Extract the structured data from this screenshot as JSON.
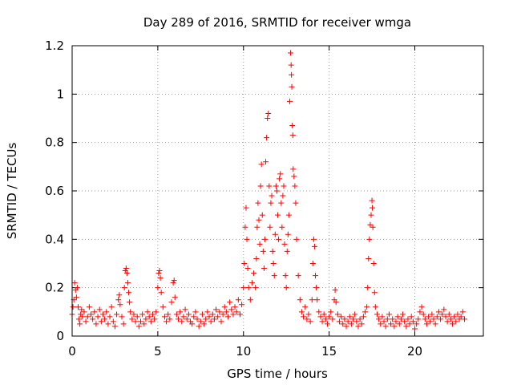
{
  "chart_data": {
    "type": "scatter",
    "title": "Day 289 of 2016, SRMTID for receiver wmga",
    "xlabel": "GPS time / hours",
    "ylabel": "SRMTID / TECUs",
    "xlim": [
      0,
      24
    ],
    "ylim": [
      0,
      1.2
    ],
    "x_ticks": [
      0,
      5,
      10,
      15,
      20
    ],
    "x_tick_labels": [
      "0",
      "5",
      "10",
      "15",
      "20"
    ],
    "y_ticks": [
      0,
      0.2,
      0.4,
      0.6,
      0.8,
      1,
      1.2
    ],
    "y_tick_labels": [
      "0",
      "0.2",
      "0.4",
      "0.6",
      "0.8",
      "1",
      "1.2"
    ],
    "grid": true,
    "marker": "plus",
    "color": "#ff0000",
    "series": [
      {
        "name": "SRMTID",
        "points": [
          [
            0.0,
            0.09
          ],
          [
            0.05,
            0.12
          ],
          [
            0.1,
            0.15
          ],
          [
            0.15,
            0.22
          ],
          [
            0.2,
            0.19
          ],
          [
            0.25,
            0.16
          ],
          [
            0.3,
            0.2
          ],
          [
            0.35,
            0.12
          ],
          [
            0.4,
            0.07
          ],
          [
            0.45,
            0.05
          ],
          [
            0.5,
            0.09
          ],
          [
            0.55,
            0.11
          ],
          [
            0.6,
            0.08
          ],
          [
            0.7,
            0.1
          ],
          [
            0.8,
            0.06
          ],
          [
            0.9,
            0.08
          ],
          [
            1.0,
            0.12
          ],
          [
            1.1,
            0.09
          ],
          [
            1.2,
            0.07
          ],
          [
            1.3,
            0.1
          ],
          [
            1.4,
            0.05
          ],
          [
            1.5,
            0.08
          ],
          [
            1.6,
            0.11
          ],
          [
            1.7,
            0.06
          ],
          [
            1.8,
            0.09
          ],
          [
            1.9,
            0.07
          ],
          [
            2.0,
            0.1
          ],
          [
            2.1,
            0.05
          ],
          [
            2.2,
            0.08
          ],
          [
            2.3,
            0.12
          ],
          [
            2.4,
            0.06
          ],
          [
            2.5,
            0.04
          ],
          [
            2.6,
            0.09
          ],
          [
            2.7,
            0.15
          ],
          [
            2.75,
            0.17
          ],
          [
            2.8,
            0.13
          ],
          [
            2.9,
            0.08
          ],
          [
            3.0,
            0.05
          ],
          [
            3.05,
            0.2
          ],
          [
            3.1,
            0.27
          ],
          [
            3.15,
            0.28
          ],
          [
            3.2,
            0.26
          ],
          [
            3.25,
            0.22
          ],
          [
            3.3,
            0.18
          ],
          [
            3.35,
            0.14
          ],
          [
            3.4,
            0.1
          ],
          [
            3.5,
            0.07
          ],
          [
            3.6,
            0.09
          ],
          [
            3.7,
            0.06
          ],
          [
            3.8,
            0.08
          ],
          [
            3.9,
            0.04
          ],
          [
            4.0,
            0.06
          ],
          [
            4.1,
            0.09
          ],
          [
            4.2,
            0.05
          ],
          [
            4.3,
            0.07
          ],
          [
            4.4,
            0.1
          ],
          [
            4.5,
            0.08
          ],
          [
            4.6,
            0.06
          ],
          [
            4.7,
            0.09
          ],
          [
            4.8,
            0.07
          ],
          [
            4.9,
            0.1
          ],
          [
            5.0,
            0.2
          ],
          [
            5.05,
            0.26
          ],
          [
            5.1,
            0.27
          ],
          [
            5.15,
            0.24
          ],
          [
            5.2,
            0.18
          ],
          [
            5.3,
            0.12
          ],
          [
            5.4,
            0.08
          ],
          [
            5.5,
            0.06
          ],
          [
            5.6,
            0.09
          ],
          [
            5.7,
            0.07
          ],
          [
            5.8,
            0.14
          ],
          [
            5.9,
            0.22
          ],
          [
            5.95,
            0.23
          ],
          [
            6.0,
            0.16
          ],
          [
            6.1,
            0.09
          ],
          [
            6.2,
            0.07
          ],
          [
            6.3,
            0.1
          ],
          [
            6.4,
            0.06
          ],
          [
            6.5,
            0.08
          ],
          [
            6.6,
            0.11
          ],
          [
            6.7,
            0.07
          ],
          [
            6.8,
            0.09
          ],
          [
            6.9,
            0.06
          ],
          [
            7.0,
            0.05
          ],
          [
            7.1,
            0.08
          ],
          [
            7.2,
            0.1
          ],
          [
            7.3,
            0.07
          ],
          [
            7.4,
            0.04
          ],
          [
            7.5,
            0.06
          ],
          [
            7.6,
            0.09
          ],
          [
            7.7,
            0.05
          ],
          [
            7.8,
            0.07
          ],
          [
            7.9,
            0.1
          ],
          [
            8.0,
            0.08
          ],
          [
            8.1,
            0.06
          ],
          [
            8.2,
            0.09
          ],
          [
            8.3,
            0.07
          ],
          [
            8.4,
            0.11
          ],
          [
            8.5,
            0.08
          ],
          [
            8.6,
            0.1
          ],
          [
            8.7,
            0.06
          ],
          [
            8.8,
            0.09
          ],
          [
            8.9,
            0.12
          ],
          [
            9.0,
            0.1
          ],
          [
            9.1,
            0.08
          ],
          [
            9.2,
            0.14
          ],
          [
            9.3,
            0.11
          ],
          [
            9.4,
            0.09
          ],
          [
            9.5,
            0.12
          ],
          [
            9.6,
            0.1
          ],
          [
            9.7,
            0.15
          ],
          [
            9.8,
            0.09
          ],
          [
            9.9,
            0.13
          ],
          [
            10.0,
            0.2
          ],
          [
            10.05,
            0.3
          ],
          [
            10.1,
            0.45
          ],
          [
            10.15,
            0.53
          ],
          [
            10.2,
            0.4
          ],
          [
            10.25,
            0.28
          ],
          [
            10.3,
            0.2
          ],
          [
            10.4,
            0.15
          ],
          [
            10.5,
            0.22
          ],
          [
            10.6,
            0.26
          ],
          [
            10.7,
            0.2
          ],
          [
            10.75,
            0.32
          ],
          [
            10.8,
            0.45
          ],
          [
            10.85,
            0.55
          ],
          [
            10.9,
            0.48
          ],
          [
            10.95,
            0.38
          ],
          [
            11.0,
            0.62
          ],
          [
            11.05,
            0.71
          ],
          [
            11.1,
            0.5
          ],
          [
            11.15,
            0.35
          ],
          [
            11.2,
            0.28
          ],
          [
            11.25,
            0.4
          ],
          [
            11.3,
            0.72
          ],
          [
            11.35,
            0.82
          ],
          [
            11.4,
            0.9
          ],
          [
            11.45,
            0.92
          ],
          [
            11.5,
            0.62
          ],
          [
            11.55,
            0.45
          ],
          [
            11.6,
            0.55
          ],
          [
            11.65,
            0.58
          ],
          [
            11.7,
            0.35
          ],
          [
            11.75,
            0.3
          ],
          [
            11.8,
            0.25
          ],
          [
            11.85,
            0.42
          ],
          [
            11.9,
            0.62
          ],
          [
            11.95,
            0.6
          ],
          [
            12.0,
            0.5
          ],
          [
            12.05,
            0.4
          ],
          [
            12.1,
            0.65
          ],
          [
            12.15,
            0.67
          ],
          [
            12.2,
            0.55
          ],
          [
            12.25,
            0.45
          ],
          [
            12.3,
            0.58
          ],
          [
            12.35,
            0.62
          ],
          [
            12.4,
            0.38
          ],
          [
            12.45,
            0.25
          ],
          [
            12.5,
            0.2
          ],
          [
            12.55,
            0.35
          ],
          [
            12.6,
            0.42
          ],
          [
            12.65,
            0.5
          ],
          [
            12.7,
            0.97
          ],
          [
            12.75,
            1.17
          ],
          [
            12.78,
            1.12
          ],
          [
            12.8,
            1.08
          ],
          [
            12.82,
            1.03
          ],
          [
            12.85,
            0.87
          ],
          [
            12.88,
            0.83
          ],
          [
            12.9,
            0.69
          ],
          [
            12.95,
            0.66
          ],
          [
            13.0,
            0.62
          ],
          [
            13.05,
            0.55
          ],
          [
            13.1,
            0.4
          ],
          [
            13.2,
            0.25
          ],
          [
            13.3,
            0.15
          ],
          [
            13.4,
            0.1
          ],
          [
            13.5,
            0.08
          ],
          [
            13.6,
            0.12
          ],
          [
            13.7,
            0.07
          ],
          [
            13.8,
            0.09
          ],
          [
            13.9,
            0.06
          ],
          [
            14.0,
            0.15
          ],
          [
            14.05,
            0.3
          ],
          [
            14.1,
            0.4
          ],
          [
            14.15,
            0.37
          ],
          [
            14.2,
            0.25
          ],
          [
            14.25,
            0.2
          ],
          [
            14.3,
            0.15
          ],
          [
            14.4,
            0.1
          ],
          [
            14.5,
            0.08
          ],
          [
            14.6,
            0.06
          ],
          [
            14.7,
            0.09
          ],
          [
            14.8,
            0.07
          ],
          [
            14.9,
            0.05
          ],
          [
            15.0,
            0.08
          ],
          [
            15.1,
            0.1
          ],
          [
            15.2,
            0.07
          ],
          [
            15.3,
            0.15
          ],
          [
            15.35,
            0.19
          ],
          [
            15.4,
            0.14
          ],
          [
            15.5,
            0.09
          ],
          [
            15.6,
            0.06
          ],
          [
            15.7,
            0.08
          ],
          [
            15.8,
            0.05
          ],
          [
            15.9,
            0.07
          ],
          [
            16.0,
            0.04
          ],
          [
            16.1,
            0.06
          ],
          [
            16.2,
            0.08
          ],
          [
            16.3,
            0.05
          ],
          [
            16.4,
            0.07
          ],
          [
            16.5,
            0.09
          ],
          [
            16.6,
            0.06
          ],
          [
            16.7,
            0.04
          ],
          [
            16.8,
            0.07
          ],
          [
            16.9,
            0.05
          ],
          [
            17.0,
            0.08
          ],
          [
            17.1,
            0.1
          ],
          [
            17.2,
            0.12
          ],
          [
            17.25,
            0.2
          ],
          [
            17.3,
            0.32
          ],
          [
            17.35,
            0.4
          ],
          [
            17.4,
            0.46
          ],
          [
            17.45,
            0.5
          ],
          [
            17.5,
            0.56
          ],
          [
            17.52,
            0.53
          ],
          [
            17.55,
            0.45
          ],
          [
            17.6,
            0.3
          ],
          [
            17.65,
            0.18
          ],
          [
            17.7,
            0.12
          ],
          [
            17.8,
            0.09
          ],
          [
            17.9,
            0.07
          ],
          [
            18.0,
            0.05
          ],
          [
            18.1,
            0.08
          ],
          [
            18.2,
            0.06
          ],
          [
            18.3,
            0.04
          ],
          [
            18.4,
            0.07
          ],
          [
            18.5,
            0.09
          ],
          [
            18.6,
            0.05
          ],
          [
            18.7,
            0.07
          ],
          [
            18.8,
            0.04
          ],
          [
            18.9,
            0.06
          ],
          [
            19.0,
            0.08
          ],
          [
            19.1,
            0.05
          ],
          [
            19.2,
            0.07
          ],
          [
            19.3,
            0.09
          ],
          [
            19.4,
            0.06
          ],
          [
            19.5,
            0.04
          ],
          [
            19.6,
            0.07
          ],
          [
            19.7,
            0.05
          ],
          [
            19.8,
            0.08
          ],
          [
            19.9,
            0.06
          ],
          [
            20.0,
            0.03
          ],
          [
            20.1,
            0.05
          ],
          [
            20.2,
            0.07
          ],
          [
            20.3,
            0.1
          ],
          [
            20.4,
            0.12
          ],
          [
            20.5,
            0.09
          ],
          [
            20.6,
            0.07
          ],
          [
            20.7,
            0.05
          ],
          [
            20.8,
            0.08
          ],
          [
            20.9,
            0.06
          ],
          [
            21.0,
            0.09
          ],
          [
            21.1,
            0.07
          ],
          [
            21.2,
            0.05
          ],
          [
            21.3,
            0.08
          ],
          [
            21.4,
            0.1
          ],
          [
            21.5,
            0.07
          ],
          [
            21.6,
            0.09
          ],
          [
            21.7,
            0.11
          ],
          [
            21.8,
            0.08
          ],
          [
            21.9,
            0.06
          ],
          [
            22.0,
            0.09
          ],
          [
            22.1,
            0.07
          ],
          [
            22.2,
            0.05
          ],
          [
            22.3,
            0.08
          ],
          [
            22.4,
            0.06
          ],
          [
            22.5,
            0.09
          ],
          [
            22.6,
            0.07
          ],
          [
            22.7,
            0.08
          ],
          [
            22.8,
            0.1
          ],
          [
            22.9,
            0.07
          ]
        ]
      }
    ]
  }
}
